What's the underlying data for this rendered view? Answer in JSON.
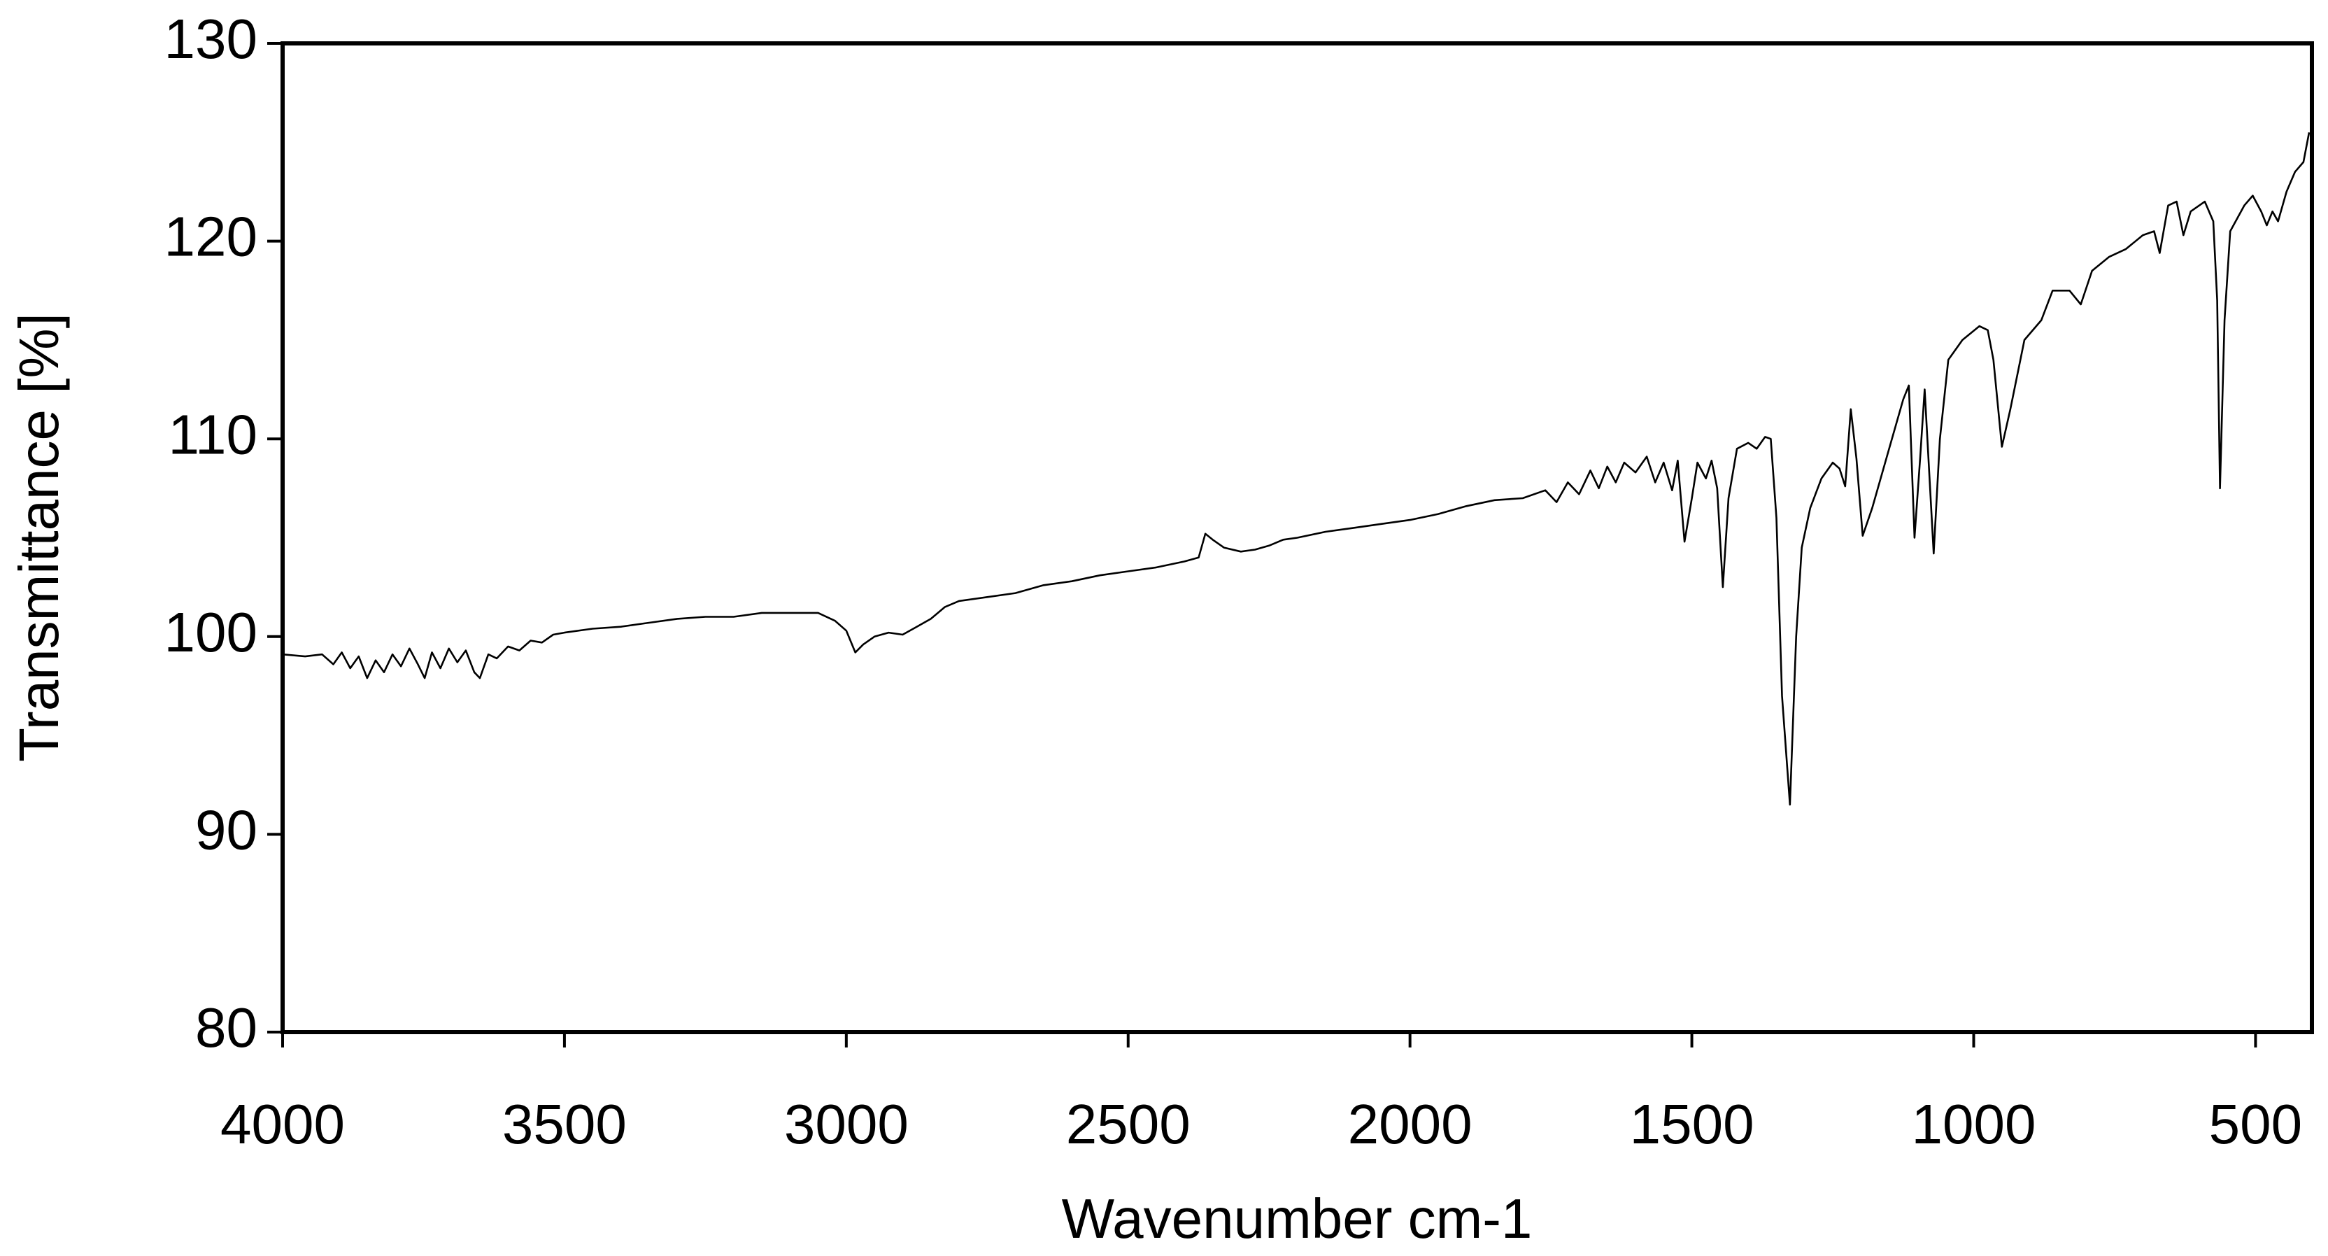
{
  "chart_data": {
    "type": "line",
    "xlabel": "Wavenumber cm-1",
    "ylabel": "Transmittance [%]",
    "color": "#000000",
    "xlim": [
      4000,
      400
    ],
    "ylim": [
      80,
      130
    ],
    "xticks": [
      4000,
      3500,
      3000,
      2500,
      2000,
      1500,
      1000,
      500
    ],
    "yticks": [
      80,
      90,
      100,
      110,
      120,
      130
    ],
    "grid": false,
    "x": [
      4000,
      3960,
      3930,
      3910,
      3895,
      3880,
      3865,
      3850,
      3835,
      3820,
      3805,
      3790,
      3775,
      3760,
      3748,
      3735,
      3720,
      3705,
      3690,
      3675,
      3660,
      3650,
      3635,
      3620,
      3600,
      3580,
      3560,
      3540,
      3520,
      3500,
      3450,
      3400,
      3350,
      3300,
      3250,
      3200,
      3150,
      3100,
      3050,
      3020,
      3000,
      2984,
      2970,
      2950,
      2925,
      2900,
      2875,
      2850,
      2825,
      2800,
      2750,
      2700,
      2650,
      2600,
      2550,
      2500,
      2450,
      2400,
      2375,
      2363,
      2350,
      2330,
      2300,
      2275,
      2250,
      2225,
      2200,
      2150,
      2100,
      2050,
      2000,
      1950,
      1900,
      1850,
      1800,
      1760,
      1740,
      1720,
      1700,
      1680,
      1665,
      1650,
      1635,
      1620,
      1600,
      1580,
      1565,
      1550,
      1535,
      1525,
      1513,
      1500,
      1490,
      1475,
      1465,
      1455,
      1445,
      1435,
      1420,
      1400,
      1385,
      1370,
      1360,
      1350,
      1340,
      1326,
      1315,
      1305,
      1290,
      1270,
      1250,
      1238,
      1228,
      1218,
      1208,
      1197,
      1180,
      1150,
      1125,
      1115,
      1105,
      1095,
      1087,
      1071,
      1060,
      1045,
      1020,
      990,
      975,
      965,
      950,
      935,
      910,
      880,
      860,
      830,
      810,
      790,
      760,
      730,
      700,
      680,
      670,
      655,
      640,
      628,
      615,
      590,
      575,
      568,
      563,
      555,
      545,
      520,
      505,
      490,
      480,
      470,
      460,
      445,
      430,
      415,
      405
    ],
    "values": [
      99.1,
      99.0,
      99.1,
      98.6,
      99.2,
      98.4,
      99.0,
      97.9,
      98.8,
      98.2,
      99.1,
      98.5,
      99.4,
      98.6,
      97.9,
      99.2,
      98.4,
      99.4,
      98.7,
      99.3,
      98.2,
      97.9,
      99.1,
      98.9,
      99.5,
      99.3,
      99.8,
      99.7,
      100.1,
      100.2,
      100.4,
      100.5,
      100.7,
      100.9,
      101.0,
      101.0,
      101.2,
      101.2,
      101.2,
      100.8,
      100.3,
      99.2,
      99.6,
      100.0,
      100.2,
      100.1,
      100.5,
      100.9,
      101.5,
      101.8,
      102.0,
      102.2,
      102.6,
      102.8,
      103.1,
      103.3,
      103.5,
      103.8,
      104.0,
      105.2,
      104.9,
      104.5,
      104.3,
      104.4,
      104.6,
      104.9,
      105.0,
      105.3,
      105.5,
      105.7,
      105.9,
      106.2,
      106.6,
      106.9,
      107.0,
      107.4,
      106.8,
      107.8,
      107.2,
      108.4,
      107.5,
      108.6,
      107.8,
      108.8,
      108.3,
      109.1,
      107.8,
      108.8,
      107.4,
      108.9,
      104.8,
      107.0,
      108.8,
      108.0,
      108.9,
      107.5,
      102.5,
      107.0,
      109.5,
      109.8,
      109.5,
      110.1,
      110.0,
      106.0,
      97.0,
      91.5,
      100.0,
      104.5,
      106.5,
      108.0,
      108.8,
      108.5,
      107.6,
      111.5,
      109.0,
      105.1,
      106.5,
      109.5,
      112.0,
      112.7,
      105.0,
      109.0,
      112.5,
      104.2,
      110.0,
      114.0,
      115.0,
      115.7,
      115.5,
      114.0,
      109.6,
      111.5,
      115.0,
      116.0,
      117.5,
      117.5,
      116.8,
      118.5,
      119.2,
      119.6,
      120.3,
      120.5,
      119.4,
      121.8,
      122.0,
      120.3,
      121.5,
      122.0,
      121.0,
      117.0,
      107.5,
      116.0,
      120.5,
      121.8,
      122.3,
      121.5,
      120.8,
      121.5,
      121.0,
      122.5,
      123.5,
      124.0,
      125.5
    ]
  }
}
